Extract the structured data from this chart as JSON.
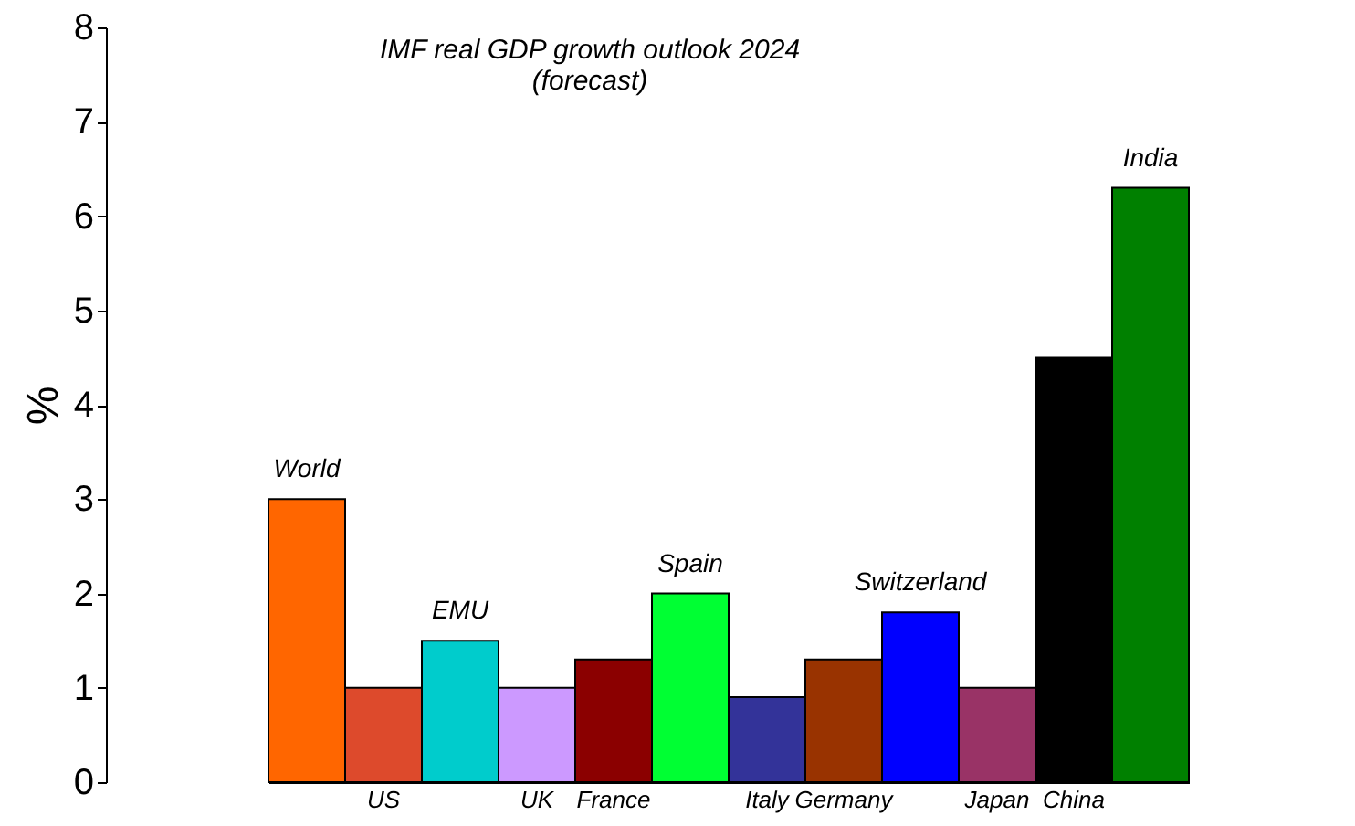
{
  "chart_data": {
    "type": "bar",
    "title": "IMF real GDP growth outlook 2024\n(forecast)",
    "ylabel": "%",
    "categories": [
      "World",
      "US",
      "EMU",
      "UK",
      "France",
      "Spain",
      "Italy",
      "Germany",
      "Switzerland",
      "Japan",
      "China",
      "India"
    ],
    "values": [
      3.0,
      1.0,
      1.5,
      1.0,
      1.3,
      2.0,
      0.9,
      1.3,
      1.8,
      1.0,
      4.5,
      6.3
    ],
    "colors": [
      "#ff6600",
      "#dd4a2c",
      "#00cccc",
      "#cc99ff",
      "#8b0000",
      "#00ff33",
      "#333399",
      "#993300",
      "#0000ff",
      "#993366",
      "#000000",
      "#008000"
    ],
    "ylim": [
      0,
      8
    ],
    "yticks": [
      0,
      1,
      2,
      3,
      4,
      5,
      6,
      7,
      8
    ],
    "grid": false,
    "legend": false
  }
}
